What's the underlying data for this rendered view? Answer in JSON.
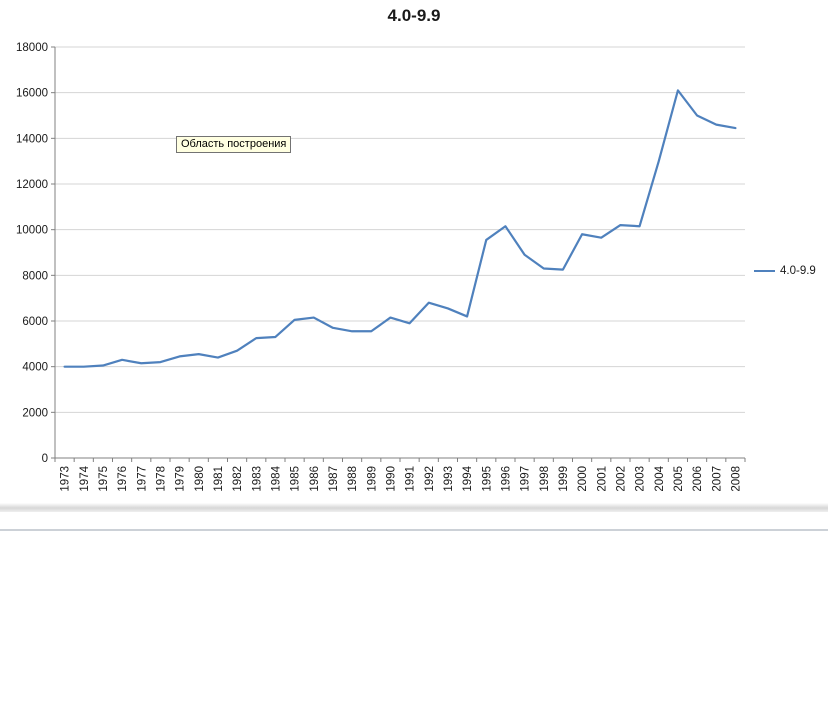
{
  "tooltip": {
    "text": "Область построения"
  },
  "legend": {
    "label": "4.0-9.9"
  },
  "chart_data": {
    "type": "line",
    "title": "4.0-9.9",
    "xlabel": "",
    "ylabel": "",
    "categories": [
      "1973",
      "1974",
      "1975",
      "1976",
      "1977",
      "1978",
      "1979",
      "1980",
      "1981",
      "1982",
      "1983",
      "1984",
      "1985",
      "1986",
      "1987",
      "1988",
      "1989",
      "1990",
      "1991",
      "1992",
      "1993",
      "1994",
      "1995",
      "1996",
      "1997",
      "1998",
      "1999",
      "2000",
      "2001",
      "2002",
      "2003",
      "2004",
      "2005",
      "2006",
      "2007",
      "2008"
    ],
    "series": [
      {
        "name": "4.0-9.9",
        "color": "#4f81bd",
        "values": [
          4000,
          4000,
          4050,
          4300,
          4150,
          4200,
          4450,
          4550,
          4400,
          4700,
          5250,
          5300,
          6050,
          6150,
          5700,
          5550,
          5550,
          6150,
          5900,
          6800,
          6550,
          6200,
          9550,
          10150,
          8900,
          8300,
          8250,
          9800,
          9650,
          10200,
          10150,
          13000,
          16100,
          15000,
          14600,
          14450
        ]
      }
    ],
    "ylim": [
      0,
      18000
    ],
    "yticks": [
      0,
      2000,
      4000,
      6000,
      8000,
      10000,
      12000,
      14000,
      16000,
      18000
    ],
    "grid": true,
    "legend_position": "right",
    "colors": {
      "gridline": "#d4d4d4",
      "axis": "#808080",
      "tick_label": "#1a1a1a"
    }
  }
}
